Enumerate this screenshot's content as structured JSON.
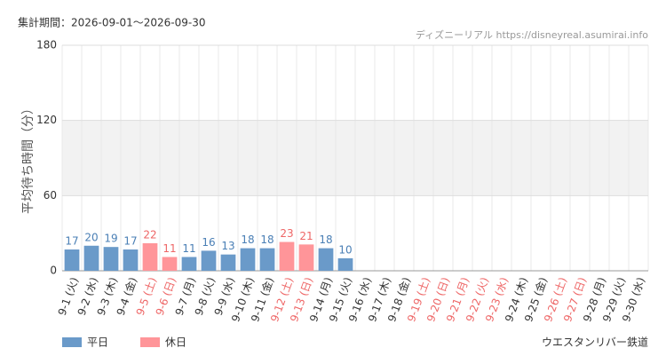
{
  "chart_data": {
    "type": "bar",
    "title": "集計期間：2026-09-01～2026-09-30",
    "source": "ディズニーリアル https://disneyreal.asumirai.info",
    "y_label": "平均待ち時間（分）",
    "footer": "ウエスタンリバー鉄道",
    "categories": [
      "9-1 (火)",
      "9-2 (水)",
      "9-3 (木)",
      "9-4 (金)",
      "9-5 (土)",
      "9-6 (日)",
      "9-7 (月)",
      "9-8 (火)",
      "9-9 (水)",
      "9-10 (木)",
      "9-11 (金)",
      "9-12 (土)",
      "9-13 (日)",
      "9-14 (月)",
      "9-15 (火)",
      "9-16 (水)",
      "9-17 (木)",
      "9-18 (金)",
      "9-19 (土)",
      "9-20 (日)",
      "9-21 (月)",
      "9-22 (火)",
      "9-23 (水)",
      "9-24 (木)",
      "9-25 (金)",
      "9-26 (土)",
      "9-27 (日)",
      "9-28 (月)",
      "9-29 (火)",
      "9-30 (水)"
    ],
    "category_colors": [
      "#333333",
      "#333333",
      "#333333",
      "#333333",
      "#ee6666",
      "#ee6666",
      "#333333",
      "#333333",
      "#333333",
      "#333333",
      "#333333",
      "#ee6666",
      "#ee6666",
      "#333333",
      "#333333",
      "#333333",
      "#333333",
      "#333333",
      "#ee6666",
      "#ee6666",
      "#ee6666",
      "#ee6666",
      "#ee6666",
      "#333333",
      "#333333",
      "#ee6666",
      "#ee6666",
      "#333333",
      "#333333",
      "#333333"
    ],
    "series": [
      {
        "name": "平日",
        "color": "#6a9ac9",
        "label_color": "#4a7fb5",
        "values": [
          17,
          20,
          19,
          17,
          null,
          null,
          11,
          16,
          13,
          18,
          18,
          null,
          null,
          18,
          10,
          null,
          null,
          null,
          null,
          null,
          null,
          null,
          null,
          null,
          null,
          null,
          null,
          null,
          null,
          null
        ]
      },
      {
        "name": "休日",
        "color": "#ff9599",
        "label_color": "#ee6666",
        "values": [
          null,
          null,
          null,
          null,
          22,
          11,
          null,
          null,
          null,
          null,
          null,
          23,
          21,
          null,
          null,
          null,
          null,
          null,
          null,
          null,
          null,
          null,
          null,
          null,
          null,
          null,
          null,
          null,
          null,
          null
        ]
      }
    ],
    "ylim": [
      0,
      180
    ],
    "yticks": [
      0,
      60,
      120,
      180
    ],
    "shaded_range": [
      60,
      120
    ],
    "grid": true
  }
}
